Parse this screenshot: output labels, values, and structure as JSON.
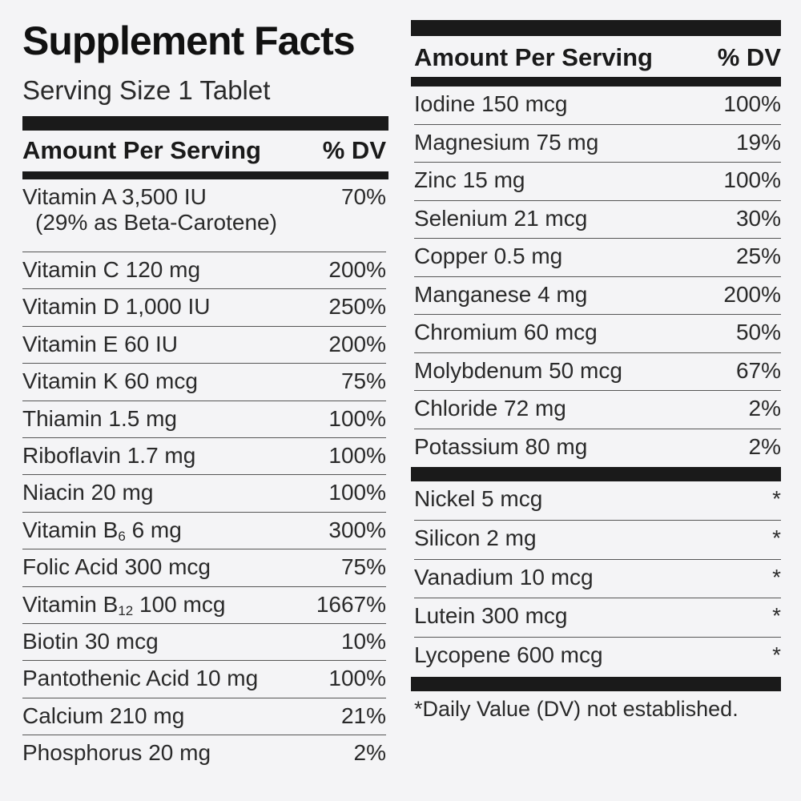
{
  "title": "Supplement Facts",
  "serving_size": "Serving Size 1 Tablet",
  "left": {
    "header": {
      "amount": "Amount Per Serving",
      "dv": "% DV"
    },
    "rows": [
      {
        "label": "Vitamin A 3,500 IU",
        "note": "(29% as Beta-Carotene)",
        "dv": "70%"
      },
      {
        "label": "Vitamin C 120 mg",
        "dv": "200%"
      },
      {
        "label": "Vitamin D 1,000 IU",
        "dv": "250%"
      },
      {
        "label": "Vitamin E 60 IU",
        "dv": "200%"
      },
      {
        "label": "Vitamin K 60 mcg",
        "dv": "75%"
      },
      {
        "label": "Thiamin 1.5 mg",
        "dv": "100%"
      },
      {
        "label": "Riboflavin 1.7 mg",
        "dv": "100%"
      },
      {
        "label": "Niacin 20 mg",
        "dv": "100%"
      },
      {
        "label": "Vitamin B",
        "sub": "6",
        "rest": " 6 mg",
        "dv": "300%"
      },
      {
        "label": "Folic Acid 300 mcg",
        "dv": "75%"
      },
      {
        "label": "Vitamin B",
        "sub": "12",
        "rest": " 100 mcg",
        "dv": "1667%"
      },
      {
        "label": "Biotin 30 mcg",
        "dv": "10%"
      },
      {
        "label": "Pantothenic Acid 10 mg",
        "dv": "100%"
      },
      {
        "label": "Calcium 210 mg",
        "dv": "21%"
      },
      {
        "label": "Phosphorus 20 mg",
        "dv": "2%"
      }
    ]
  },
  "right": {
    "header": {
      "amount": "Amount Per Serving",
      "dv": "% DV"
    },
    "rows": [
      {
        "label": "Iodine 150 mcg",
        "dv": "100%"
      },
      {
        "label": "Magnesium 75 mg",
        "dv": "19%"
      },
      {
        "label": "Zinc 15 mg",
        "dv": "100%"
      },
      {
        "label": "Selenium 21 mcg",
        "dv": "30%"
      },
      {
        "label": "Copper 0.5 mg",
        "dv": "25%"
      },
      {
        "label": "Manganese 4 mg",
        "dv": "200%"
      },
      {
        "label": "Chromium 60 mcg",
        "dv": "50%"
      },
      {
        "label": "Molybdenum 50 mcg",
        "dv": "67%"
      },
      {
        "label": "Chloride 72 mg",
        "dv": "2%"
      },
      {
        "label": "Potassium 80 mg",
        "dv": "2%"
      }
    ],
    "other_rows": [
      {
        "label": "Nickel 5 mcg",
        "dv": "*"
      },
      {
        "label": "Silicon 2 mg",
        "dv": "*"
      },
      {
        "label": "Vanadium 10 mcg",
        "dv": "*"
      },
      {
        "label": "Lutein 300 mcg",
        "dv": "*"
      },
      {
        "label": "Lycopene 600 mcg",
        "dv": "*"
      }
    ],
    "footnote": "*Daily Value (DV) not established."
  }
}
